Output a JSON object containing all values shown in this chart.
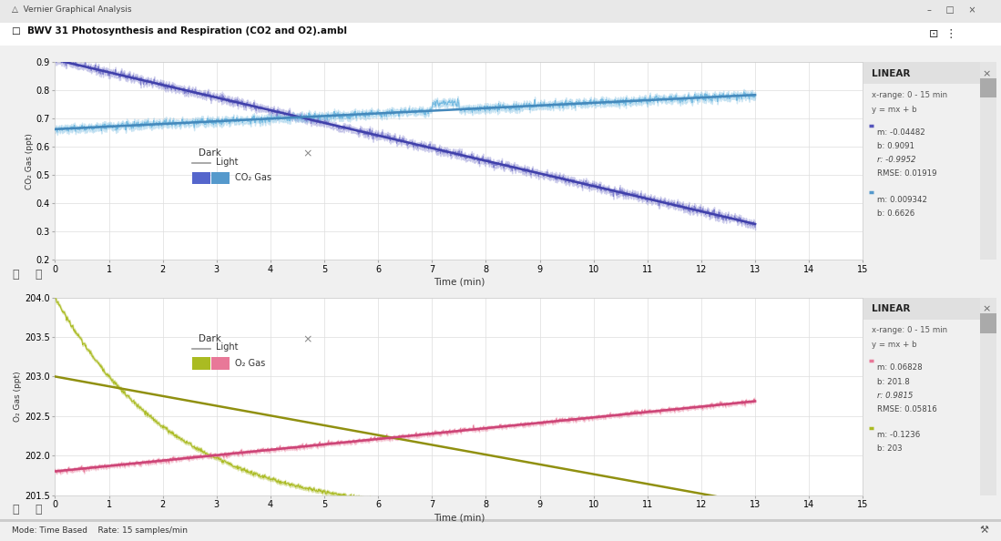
{
  "title_bar": "BWV 31 Photosynthesis and Respiration (CO2 and O2).ambl",
  "app_title": "Vernier Graphical Analysis",
  "co2": {
    "ylabel": "CO₂ Gas (ppt)",
    "xlabel": "Time (min)",
    "xlim": [
      0,
      15
    ],
    "ylim": [
      0.2,
      0.9
    ],
    "yticks": [
      0.2,
      0.3,
      0.4,
      0.5,
      0.6,
      0.7,
      0.8,
      0.9
    ],
    "xticks": [
      0,
      1,
      2,
      3,
      4,
      5,
      6,
      7,
      8,
      9,
      10,
      11,
      12,
      13,
      14,
      15
    ],
    "dark_line_color": "#7b7bcc",
    "light_line_color": "#70b8e0",
    "dark_m": -0.04482,
    "dark_b": 0.9091,
    "light_m": 0.009342,
    "light_b": 0.6626,
    "linear_panel": {
      "title": "LINEAR",
      "xrange": "x-range: 0 - 15 min",
      "equation": "y = mx + b",
      "dark_m_str": "m: -0.04482",
      "dark_b_str": "b: 0.9091",
      "dark_r_str": "r: -0.9952",
      "dark_rmse_str": "RMSE: 0.01919",
      "light_m_str": "m: 0.009342",
      "light_b_str": "b: 0.6626",
      "dark_color": "#5555bb",
      "light_color": "#5599cc"
    }
  },
  "o2": {
    "ylabel": "O₂ Gas (ppt)",
    "xlabel": "Time (min)",
    "xlim": [
      0,
      15
    ],
    "ylim": [
      201.5,
      204.0
    ],
    "yticks": [
      201.5,
      202.0,
      202.5,
      203.0,
      203.5,
      204.0
    ],
    "xticks": [
      0,
      1,
      2,
      3,
      4,
      5,
      6,
      7,
      8,
      9,
      10,
      11,
      12,
      13,
      14,
      15
    ],
    "dark_line_color": "#aabb22",
    "light_line_color": "#e87898",
    "dark_m": -0.1236,
    "dark_b": 203.0,
    "light_m": 0.06828,
    "light_b": 201.8,
    "linear_panel": {
      "title": "LINEAR",
      "xrange": "x-range: 0 - 15 min",
      "equation": "y = mx + b",
      "light_m_str": "m: 0.06828",
      "light_b_str": "b: 201.8",
      "light_r_str": "r: 0.9815",
      "light_rmse_str": "RMSE: 0.05816",
      "dark_m_str": "m: -0.1236",
      "dark_b_str": "b: 203",
      "light_color": "#e87898",
      "dark_color": "#aabb22"
    }
  },
  "fig_bg": "#f0f0f0",
  "plot_bg": "#ffffff",
  "grid_color": "#dddddd",
  "status_bar": "Mode: Time Based    Rate: 15 samples/min"
}
